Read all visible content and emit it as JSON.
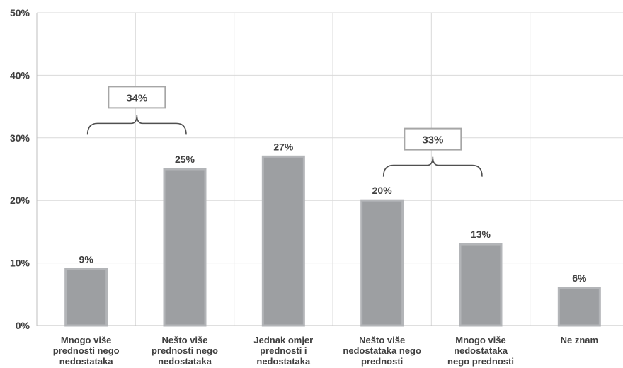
{
  "chart_data": {
    "type": "bar",
    "categories": [
      [
        "Mnogo više",
        "prednosti nego",
        "nedostataka"
      ],
      [
        "Nešto više",
        "prednosti nego",
        "nedostataka"
      ],
      [
        "Jednak omjer",
        "prednosti i",
        "nedostataka"
      ],
      [
        "Nešto više",
        "nedostataka nego",
        "prednosti"
      ],
      [
        "Mnogo više",
        "nedostataka",
        "nego prednosti"
      ],
      [
        "Ne znam"
      ]
    ],
    "values": [
      9,
      25,
      27,
      20,
      13,
      6
    ],
    "data_labels": [
      "9%",
      "25%",
      "27%",
      "20%",
      "13%",
      "6%"
    ],
    "ylim": [
      0,
      50
    ],
    "yticks": [
      0,
      10,
      20,
      30,
      40,
      50
    ],
    "ytick_labels": [
      "0%",
      "10%",
      "20%",
      "30%",
      "40%",
      "50%"
    ],
    "grid": true,
    "bar_color": "#9d9fa2",
    "bar_edge_color": "#b3b5b8",
    "group_annotations": [
      {
        "label": "34%",
        "categories": [
          0,
          1
        ],
        "bracket_y": 30.5
      },
      {
        "label": "33%",
        "categories": [
          3,
          4
        ],
        "bracket_y": 23.8
      }
    ]
  }
}
